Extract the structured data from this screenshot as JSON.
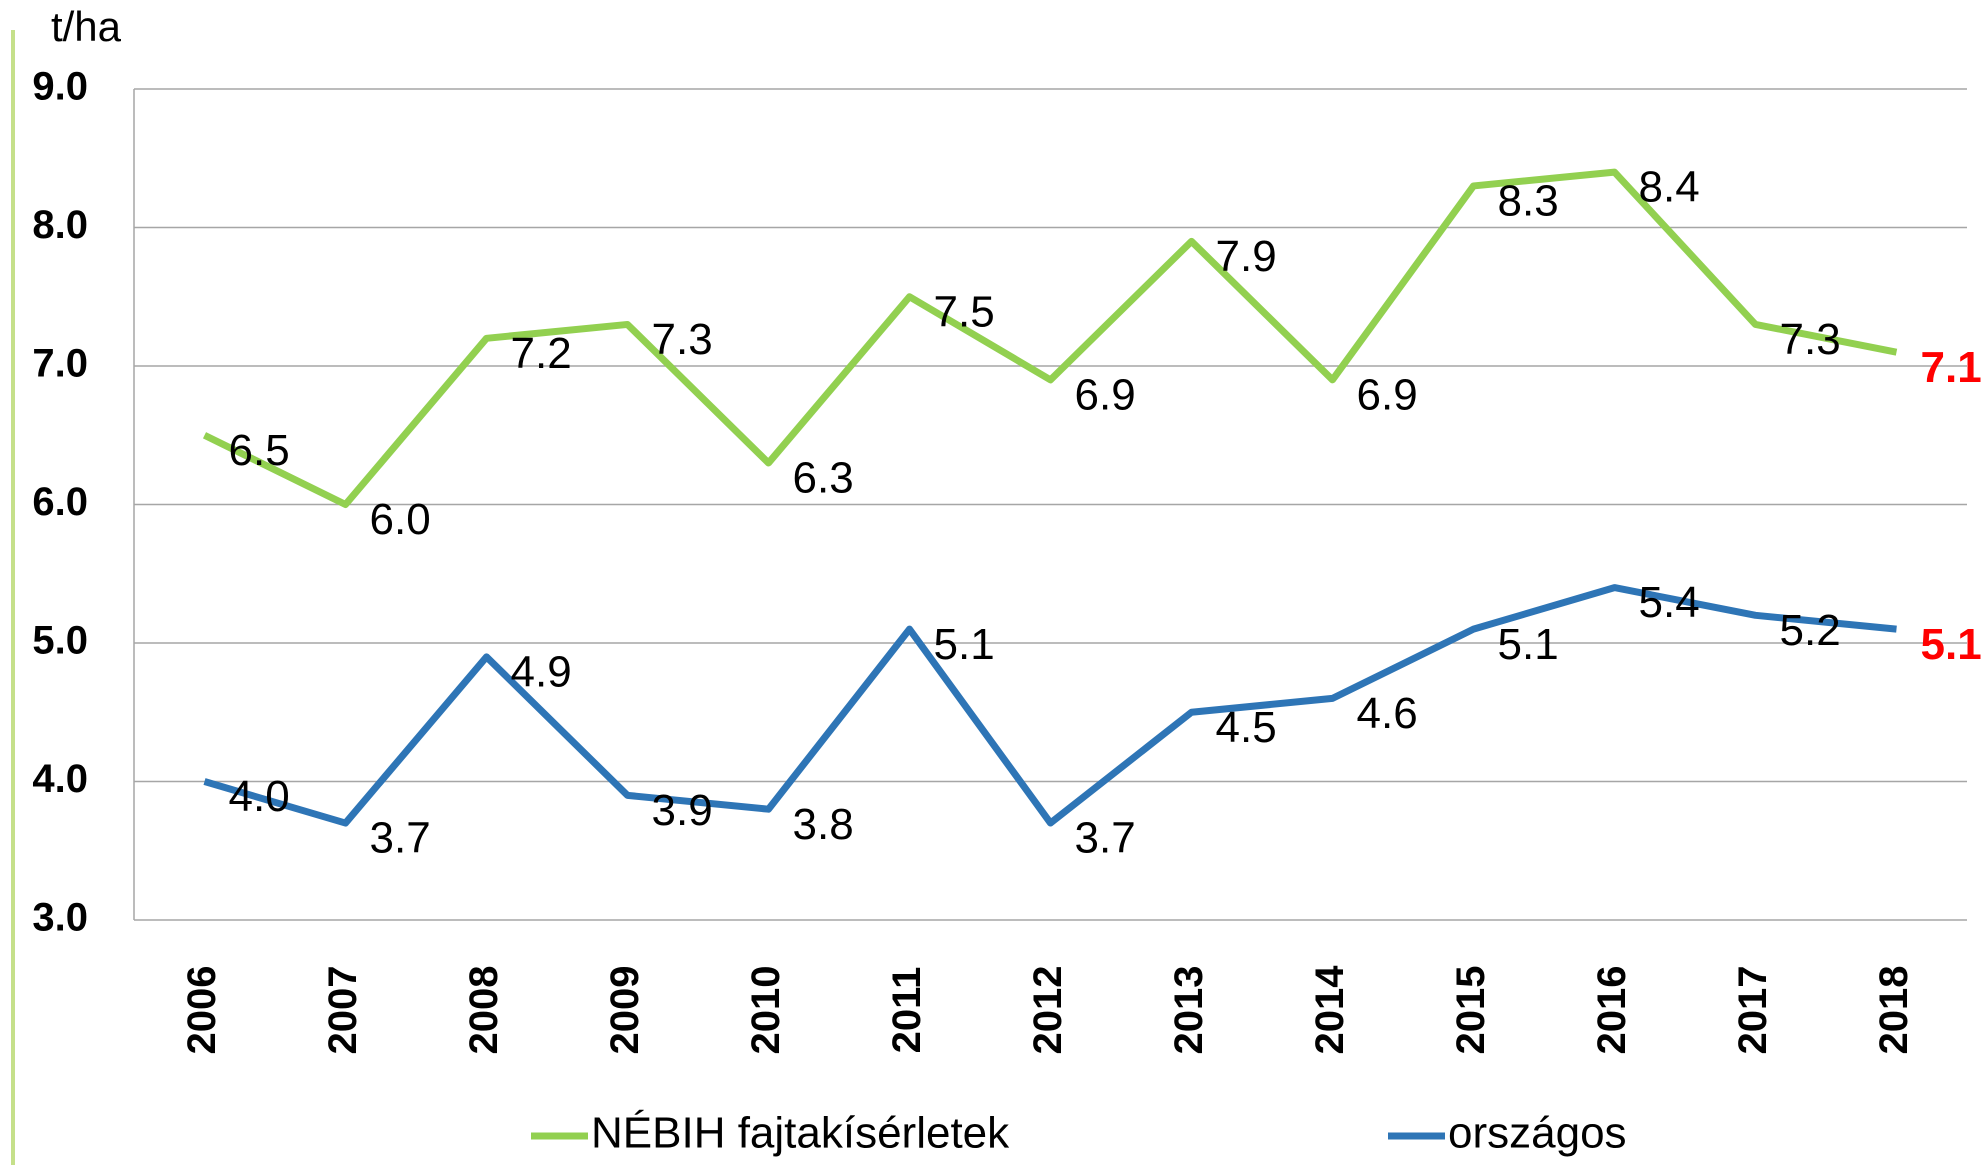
{
  "chart_data": {
    "type": "line",
    "y_label": "t/ha",
    "categories": [
      "2006",
      "2007",
      "2008",
      "2009",
      "2010",
      "2011",
      "2012",
      "2013",
      "2014",
      "2015",
      "2016",
      "2017",
      "2018"
    ],
    "series": [
      {
        "name": "NÉBIH fajtakísérletek",
        "color": "#92d050",
        "values": [
          6.5,
          6.0,
          7.2,
          7.3,
          6.3,
          7.5,
          6.9,
          7.9,
          6.9,
          8.3,
          8.4,
          7.3,
          7.1
        ],
        "value_labels": [
          "6.5",
          "6.0",
          "7.2",
          "7.3",
          "6.3",
          "7.5",
          "6.9",
          "7.9",
          "6.9",
          "8.3",
          "8.4",
          "7.3",
          "7.1"
        ]
      },
      {
        "name": "országos",
        "color": "#2e75b6",
        "values": [
          4.0,
          3.7,
          4.9,
          3.9,
          3.8,
          5.1,
          3.7,
          4.5,
          4.6,
          5.1,
          5.4,
          5.2,
          5.1
        ],
        "value_labels": [
          "4.0",
          "3.7",
          "4.9",
          "3.9",
          "3.8",
          "5.1",
          "3.7",
          "4.5",
          "4.6",
          "5.1",
          "5.4",
          "5.2",
          "5.1"
        ]
      }
    ],
    "last_label_color": "#ff0000",
    "ylim": [
      3,
      9
    ],
    "yticks": [
      {
        "value": 3,
        "label": "3.0"
      },
      {
        "value": 4,
        "label": "4.0"
      },
      {
        "value": 5,
        "label": "5.0"
      },
      {
        "value": 6,
        "label": "6.0"
      },
      {
        "value": 7,
        "label": "7.0"
      },
      {
        "value": 8,
        "label": "8.0"
      },
      {
        "value": 9,
        "label": "9.0"
      }
    ],
    "grid": true,
    "legend": "bottom"
  }
}
